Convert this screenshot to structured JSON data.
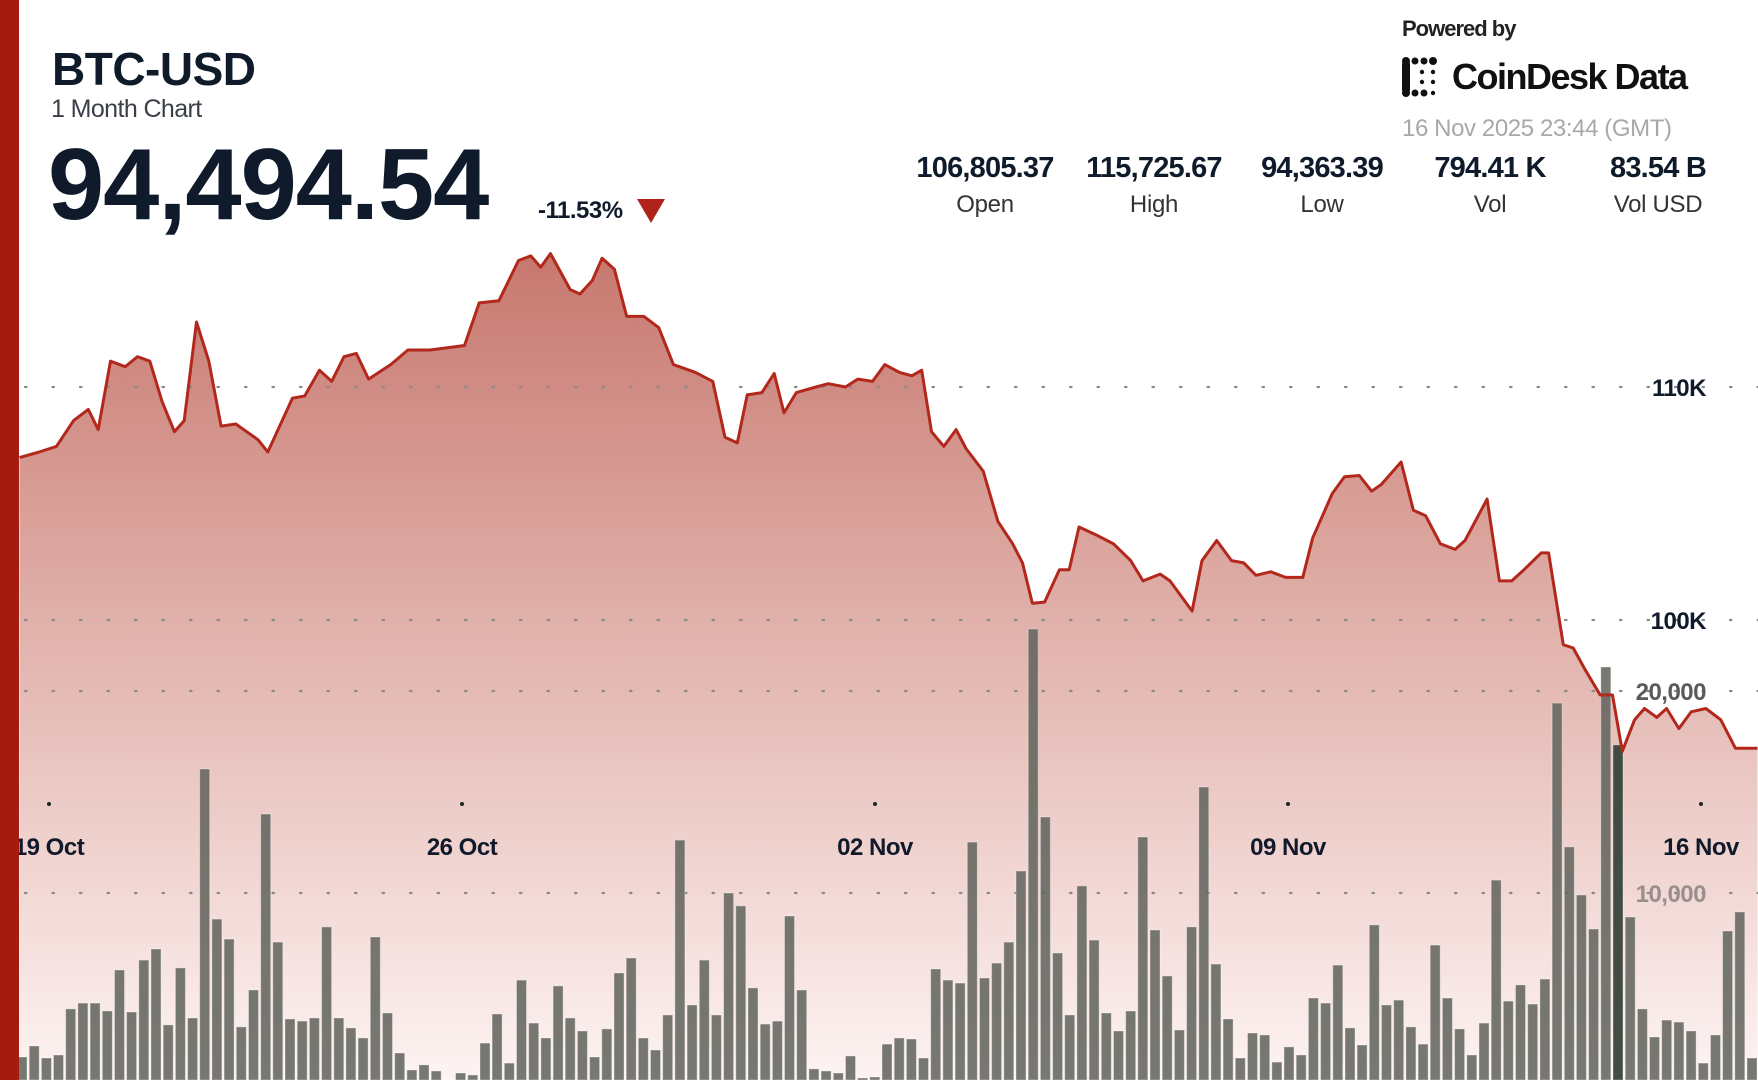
{
  "header": {
    "symbol": "BTC-USD",
    "period": "1 Month Chart",
    "price": "94,494.54",
    "change": "-11.53%",
    "change_direction": "down",
    "powered_by": "Powered by",
    "brand": "CoinDesk Data",
    "timestamp": "16 Nov 2025 23:44 (GMT)"
  },
  "stats": [
    {
      "value": "106,805.37",
      "label": "Open"
    },
    {
      "value": "115,725.67",
      "label": "High"
    },
    {
      "value": "94,363.39",
      "label": "Low"
    },
    {
      "value": "794.41 K",
      "label": "Vol"
    },
    {
      "value": "83.54 B",
      "label": "Vol USD"
    }
  ],
  "colors": {
    "accent": "#a61b10",
    "line": "#b3281c",
    "fill_top": "#c5746a",
    "volume_bar": "#5f625b",
    "volume_bar_highlight": "#37443a",
    "text": "#0f1a2a"
  },
  "chart_data": {
    "type": "area",
    "grid": true,
    "x_ticks": [
      {
        "date": "2025-10-19",
        "label": "19 Oct"
      },
      {
        "date": "2025-10-26",
        "label": "26 Oct"
      },
      {
        "date": "2025-11-02",
        "label": "02 Nov"
      },
      {
        "date": "2025-11-09",
        "label": "09 Nov"
      },
      {
        "date": "2025-11-16",
        "label": "16 Nov"
      }
    ],
    "price_axis": {
      "ticks": [
        {
          "value": 100000,
          "label": "100K"
        },
        {
          "value": 110000,
          "label": "110K"
        }
      ]
    },
    "volume_axis": {
      "ticks": [
        {
          "value": 10000,
          "label": "10,000"
        },
        {
          "value": 20000,
          "label": "20,000"
        }
      ]
    },
    "price": [
      [
        "2025-10-18 12:00",
        106970
      ],
      [
        "2025-10-18 20:00",
        107210
      ],
      [
        "2025-10-19 03:00",
        107450
      ],
      [
        "2025-10-19 10:00",
        108560
      ],
      [
        "2025-10-19 16:00",
        109040
      ],
      [
        "2025-10-19 20:00",
        108170
      ],
      [
        "2025-10-20 01:00",
        111110
      ],
      [
        "2025-10-20 07:00",
        110870
      ],
      [
        "2025-10-20 12:00",
        111300
      ],
      [
        "2025-10-20 17:00",
        111110
      ],
      [
        "2025-10-20 22:00",
        109375
      ],
      [
        "2025-10-21 03:00",
        108080
      ],
      [
        "2025-10-21 07:00",
        108560
      ],
      [
        "2025-10-21 12:00",
        112790
      ],
      [
        "2025-10-21 17:00",
        111110
      ],
      [
        "2025-10-21 22:00",
        108320
      ],
      [
        "2025-10-22 04:00",
        108410
      ],
      [
        "2025-10-22 13:00",
        107740
      ],
      [
        "2025-10-22 17:00",
        107210
      ],
      [
        "2025-10-23 03:00",
        109520
      ],
      [
        "2025-10-23 08:00",
        109615
      ],
      [
        "2025-10-23 14:00",
        110720
      ],
      [
        "2025-10-23 19:00",
        110240
      ],
      [
        "2025-10-24 00:00",
        111300
      ],
      [
        "2025-10-24 05:00",
        111440
      ],
      [
        "2025-10-24 10:00",
        110340
      ],
      [
        "2025-10-24 19:00",
        110960
      ],
      [
        "2025-10-25 02:00",
        111590
      ],
      [
        "2025-10-25 11:00",
        111590
      ],
      [
        "2025-10-26 01:00",
        111780
      ],
      [
        "2025-10-26 07:00",
        113610
      ],
      [
        "2025-10-26 15:00",
        113700
      ],
      [
        "2025-10-26 23:00",
        115430
      ],
      [
        "2025-10-27 04:00",
        115625
      ],
      [
        "2025-10-27 08:00",
        115140
      ],
      [
        "2025-10-27 12:00",
        115725
      ],
      [
        "2025-10-27 20:00",
        114180
      ],
      [
        "2025-10-28 00:00",
        113990
      ],
      [
        "2025-10-28 05:00",
        114570
      ],
      [
        "2025-10-28 09:00",
        115530
      ],
      [
        "2025-10-28 14:00",
        115050
      ],
      [
        "2025-10-28 19:00",
        113030
      ],
      [
        "2025-10-29 02:00",
        113030
      ],
      [
        "2025-10-29 08:00",
        112550
      ],
      [
        "2025-10-29 14:00",
        110960
      ],
      [
        "2025-10-29 23:00",
        110625
      ],
      [
        "2025-10-30 06:00",
        110240
      ],
      [
        "2025-10-30 11:00",
        107840
      ],
      [
        "2025-10-30 16:00",
        107600
      ],
      [
        "2025-10-30 20:00",
        109660
      ],
      [
        "2025-10-31 02:00",
        109760
      ],
      [
        "2025-10-31 07:00",
        110580
      ],
      [
        "2025-10-31 11:00",
        108890
      ],
      [
        "2025-10-31 16:00",
        109760
      ],
      [
        "2025-11-01 00:00",
        110000
      ],
      [
        "2025-11-01 05:00",
        110140
      ],
      [
        "2025-11-01 12:00",
        110000
      ],
      [
        "2025-11-01 17:00",
        110340
      ],
      [
        "2025-11-01 23:00",
        110240
      ],
      [
        "2025-11-02 04:00",
        110960
      ],
      [
        "2025-11-02 10:00",
        110625
      ],
      [
        "2025-11-02 15:00",
        110480
      ],
      [
        "2025-11-02 19:00",
        110720
      ],
      [
        "2025-11-02 23:00",
        108080
      ],
      [
        "2025-11-03 04:00",
        107450
      ],
      [
        "2025-11-03 09:00",
        108170
      ],
      [
        "2025-11-03 13:00",
        107360
      ],
      [
        "2025-11-03 20:00",
        106390
      ],
      [
        "2025-11-04 02:00",
        104230
      ],
      [
        "2025-11-04 08:00",
        103270
      ],
      [
        "2025-11-04 12:00",
        102450
      ],
      [
        "2025-11-04 16:00",
        100720
      ],
      [
        "2025-11-04 21:00",
        100770
      ],
      [
        "2025-11-05 03:00",
        102160
      ],
      [
        "2025-11-05 07:00",
        102160
      ],
      [
        "2025-11-05 11:00",
        103990
      ],
      [
        "2025-11-05 18:00",
        103650
      ],
      [
        "2025-11-06 01:00",
        103270
      ],
      [
        "2025-11-06 08:00",
        102550
      ],
      [
        "2025-11-06 13:00",
        101680
      ],
      [
        "2025-11-06 20:00",
        101970
      ],
      [
        "2025-11-07 00:00",
        101680
      ],
      [
        "2025-11-07 09:00",
        100380
      ],
      [
        "2025-11-07 13:00",
        102550
      ],
      [
        "2025-11-07 19:00",
        103410
      ],
      [
        "2025-11-08 01:00",
        102550
      ],
      [
        "2025-11-08 06:00",
        102450
      ],
      [
        "2025-11-08 11:00",
        101920
      ],
      [
        "2025-11-08 17:00",
        102070
      ],
      [
        "2025-11-08 23:00",
        101830
      ],
      [
        "2025-11-09 06:00",
        101830
      ],
      [
        "2025-11-09 10:00",
        103510
      ],
      [
        "2025-11-09 18:00",
        105430
      ],
      [
        "2025-11-09 23:00",
        106150
      ],
      [
        "2025-11-10 05:00",
        106200
      ],
      [
        "2025-11-10 10:00",
        105530
      ],
      [
        "2025-11-10 14:00",
        105820
      ],
      [
        "2025-11-10 22:00",
        106780
      ],
      [
        "2025-11-11 03:00",
        104710
      ],
      [
        "2025-11-11 08:00",
        104470
      ],
      [
        "2025-11-11 14:00",
        103270
      ],
      [
        "2025-11-11 20:00",
        103030
      ],
      [
        "2025-11-12 00:00",
        103410
      ],
      [
        "2025-11-12 09:00",
        105190
      ],
      [
        "2025-11-12 14:00",
        101680
      ],
      [
        "2025-11-12 19:00",
        101680
      ],
      [
        "2025-11-13 00:00",
        102160
      ],
      [
        "2025-11-13 07:00",
        102880
      ],
      [
        "2025-11-13 10:00",
        102880
      ],
      [
        "2025-11-13 16:00",
        98940
      ],
      [
        "2025-11-13 20:00",
        98800
      ],
      [
        "2025-11-14 01:00",
        97840
      ],
      [
        "2025-11-14 07:00",
        96780
      ],
      [
        "2025-11-14 12:00",
        96780
      ],
      [
        "2025-11-14 16:00",
        94363
      ],
      [
        "2025-11-14 21:00",
        95720
      ],
      [
        "2025-11-15 01:00",
        96200
      ],
      [
        "2025-11-15 06:00",
        95820
      ],
      [
        "2025-11-15 10:00",
        96200
      ],
      [
        "2025-11-15 15:00",
        95340
      ],
      [
        "2025-11-15 20:00",
        96060
      ],
      [
        "2025-11-16 02:00",
        96200
      ],
      [
        "2025-11-16 08:00",
        95720
      ],
      [
        "2025-11-16 14:00",
        94500
      ],
      [
        "2025-11-16 23:00",
        94495
      ]
    ],
    "volume": [
      1880,
      2425,
      1830,
      1980,
      4260,
      4550,
      4550,
      4160,
      6190,
      4110,
      6680,
      7230,
      3470,
      6290,
      3810,
      16140,
      8710,
      7720,
      3370,
      5200,
      13910,
      7570,
      3760,
      3660,
      3810,
      8320,
      3810,
      3320,
      2820,
      7820,
      4060,
      2080,
      1240,
      1490,
      1190,
      300,
      1090,
      990,
      2570,
      4010,
      1580,
      5690,
      3560,
      2820,
      5400,
      3810,
      3170,
      1880,
      3270,
      6040,
      6780,
      2820,
      2230,
      3960,
      12620,
      4455,
      6680,
      3960,
      10000,
      9360,
      5300,
      3510,
      3660,
      8860,
      5200,
      1290,
      1190,
      1090,
      1930,
      840,
      890,
      2520,
      2820,
      2770,
      1830,
      6240,
      5690,
      5540,
      12520,
      5790,
      6530,
      7570,
      11090,
      23070,
      13760,
      7030,
      3960,
      10350,
      7670,
      4060,
      3170,
      4160,
      12770,
      8170,
      5890,
      3220,
      8320,
      15250,
      6480,
      3760,
      1830,
      3070,
      2970,
      1630,
      2380,
      1980,
      4800,
      4550,
      6430,
      3320,
      2475,
      8420,
      4455,
      4700,
      3370,
      2520,
      7420,
      4800,
      3270,
      1980,
      3560,
      10640,
      4650,
      5450,
      4500,
      5740,
      19400,
      12280,
      9900,
      8220,
      21190,
      17330,
      8810,
      4260,
      2870,
      3710,
      3610,
      3170,
      1580,
      2970,
      8120,
      9060,
      1830
    ],
    "volume_highlight_index": 131
  }
}
